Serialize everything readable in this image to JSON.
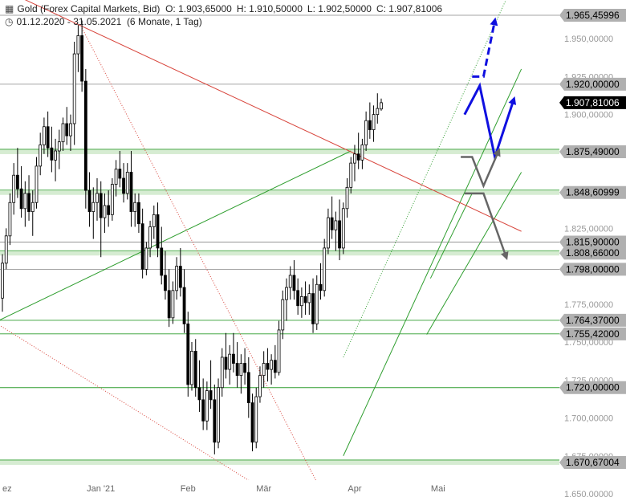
{
  "header": {
    "instrument": "Gold (Forex Capital Markets, Bid)",
    "open": "O: 1.903,65000",
    "high": "H: 1.910,50000",
    "low": "L: 1.902,50000",
    "close": "C: 1.907,81006",
    "range": "01.12.2020 - 31.05.2021",
    "period": "(6 Monate, 1 Tag)",
    "chart_icon": "candlestick-icon",
    "clock_icon": "clock-icon"
  },
  "colors": {
    "up": "#ffffff",
    "down": "#000000",
    "support": "#2f9e2f",
    "resistance": "#d8453c",
    "zone": "#d6ecd2",
    "level_line": "#888888",
    "arrow_blue": "#1010e0",
    "arrow_grey": "#666666",
    "last_price_bg": "#000000",
    "level_bg": "#b0b0b0"
  },
  "chart_data": {
    "type": "candlestick",
    "ylim": [
      1650,
      1980
    ],
    "y_ticks": [
      {
        "v": 1650,
        "label": "1.650,00000"
      },
      {
        "v": 1675,
        "label": "1.675,00000"
      },
      {
        "v": 1700,
        "label": "1.700,00000"
      },
      {
        "v": 1725,
        "label": "1.725,00000"
      },
      {
        "v": 1750,
        "label": "1.750,00000"
      },
      {
        "v": 1775,
        "label": "1.775,00000"
      },
      {
        "v": 1800,
        "label": "1.800,00000"
      },
      {
        "v": 1825,
        "label": "1.825,00000"
      },
      {
        "v": 1850,
        "label": "1.850,00000"
      },
      {
        "v": 1875,
        "label": "1.875,00000"
      },
      {
        "v": 1900,
        "label": "1.900,00000"
      },
      {
        "v": 1925,
        "label": "1.925,00000"
      },
      {
        "v": 1950,
        "label": "1.950,00000"
      }
    ],
    "x_ticks": [
      {
        "label": "ez",
        "day": 0
      },
      {
        "label": "Jan '21",
        "day": 26
      },
      {
        "label": "Feb",
        "day": 49
      },
      {
        "label": "Mär",
        "day": 69
      },
      {
        "label": "Apr",
        "day": 93
      },
      {
        "label": "Mai",
        "day": 115
      }
    ],
    "levels": [
      {
        "v": 1965.45996,
        "label": "1.965,45996",
        "style": "grey"
      },
      {
        "v": 1920.0,
        "label": "1.920,00000",
        "style": "grey"
      },
      {
        "v": 1907.81006,
        "label": "1.907,81006",
        "style": "last"
      },
      {
        "v": 1875.49,
        "label": "1.875,49000",
        "style": "zone"
      },
      {
        "v": 1848.60999,
        "label": "1.848,60999",
        "style": "zone"
      },
      {
        "v": 1815.9,
        "label": "1.815,90000",
        "style": "grey"
      },
      {
        "v": 1808.66,
        "label": "1.808,66000",
        "style": "zone"
      },
      {
        "v": 1798.0,
        "label": "1.798,00000",
        "style": "grey"
      },
      {
        "v": 1764.37,
        "label": "1.764,37000",
        "style": "green"
      },
      {
        "v": 1755.42,
        "label": "1.755,42000",
        "style": "green"
      },
      {
        "v": 1720.0,
        "label": "1.720,00000",
        "style": "green"
      },
      {
        "v": 1670.67004,
        "label": "1.670,67004",
        "style": "zone"
      }
    ],
    "candles": [
      [
        1779,
        1808,
        1770,
        1802
      ],
      [
        1802,
        1825,
        1798,
        1820
      ],
      [
        1820,
        1848,
        1814,
        1842
      ],
      [
        1842,
        1868,
        1834,
        1860
      ],
      [
        1860,
        1878,
        1845,
        1851
      ],
      [
        1851,
        1866,
        1832,
        1838
      ],
      [
        1838,
        1856,
        1826,
        1848
      ],
      [
        1848,
        1860,
        1830,
        1836
      ],
      [
        1836,
        1850,
        1820,
        1842
      ],
      [
        1842,
        1872,
        1838,
        1866
      ],
      [
        1866,
        1888,
        1860,
        1880
      ],
      [
        1880,
        1898,
        1874,
        1892
      ],
      [
        1892,
        1902,
        1872,
        1878
      ],
      [
        1878,
        1892,
        1862,
        1870
      ],
      [
        1870,
        1884,
        1856,
        1876
      ],
      [
        1876,
        1890,
        1864,
        1882
      ],
      [
        1882,
        1898,
        1876,
        1894
      ],
      [
        1894,
        1905,
        1880,
        1886
      ],
      [
        1886,
        1900,
        1876,
        1894
      ],
      [
        1894,
        1948,
        1880,
        1940
      ],
      [
        1940,
        1959,
        1928,
        1952
      ],
      [
        1952,
        1962,
        1915,
        1922
      ],
      [
        1922,
        1930,
        1838,
        1850
      ],
      [
        1850,
        1862,
        1826,
        1836
      ],
      [
        1836,
        1852,
        1818,
        1842
      ],
      [
        1842,
        1858,
        1830,
        1848
      ],
      [
        1848,
        1856,
        1806,
        1832
      ],
      [
        1832,
        1848,
        1822,
        1840
      ],
      [
        1840,
        1850,
        1826,
        1834
      ],
      [
        1834,
        1858,
        1830,
        1854
      ],
      [
        1854,
        1870,
        1846,
        1864
      ],
      [
        1864,
        1876,
        1852,
        1858
      ],
      [
        1858,
        1868,
        1842,
        1848
      ],
      [
        1848,
        1868,
        1844,
        1862
      ],
      [
        1862,
        1876,
        1826,
        1836
      ],
      [
        1836,
        1848,
        1826,
        1842
      ],
      [
        1842,
        1848,
        1822,
        1828
      ],
      [
        1828,
        1838,
        1792,
        1798
      ],
      [
        1798,
        1816,
        1794,
        1812
      ],
      [
        1812,
        1830,
        1806,
        1826
      ],
      [
        1826,
        1840,
        1818,
        1834
      ],
      [
        1834,
        1842,
        1806,
        1812
      ],
      [
        1812,
        1826,
        1788,
        1794
      ],
      [
        1794,
        1810,
        1778,
        1784
      ],
      [
        1784,
        1798,
        1760,
        1766
      ],
      [
        1766,
        1790,
        1762,
        1784
      ],
      [
        1784,
        1806,
        1778,
        1800
      ],
      [
        1800,
        1812,
        1780,
        1786
      ],
      [
        1786,
        1798,
        1756,
        1762
      ],
      [
        1762,
        1770,
        1714,
        1722
      ],
      [
        1722,
        1750,
        1718,
        1744
      ],
      [
        1744,
        1752,
        1714,
        1720
      ],
      [
        1720,
        1738,
        1704,
        1712
      ],
      [
        1712,
        1726,
        1692,
        1698
      ],
      [
        1698,
        1724,
        1692,
        1718
      ],
      [
        1718,
        1738,
        1706,
        1712
      ],
      [
        1712,
        1722,
        1676,
        1684
      ],
      [
        1684,
        1726,
        1680,
        1720
      ],
      [
        1720,
        1746,
        1714,
        1740
      ],
      [
        1740,
        1756,
        1726,
        1732
      ],
      [
        1732,
        1748,
        1722,
        1742
      ],
      [
        1742,
        1756,
        1730,
        1736
      ],
      [
        1736,
        1750,
        1720,
        1728
      ],
      [
        1728,
        1742,
        1716,
        1736
      ],
      [
        1736,
        1746,
        1722,
        1730
      ],
      [
        1730,
        1740,
        1700,
        1710
      ],
      [
        1710,
        1716,
        1678,
        1684
      ],
      [
        1684,
        1720,
        1680,
        1714
      ],
      [
        1714,
        1734,
        1710,
        1728
      ],
      [
        1728,
        1744,
        1720,
        1736
      ],
      [
        1736,
        1746,
        1724,
        1732
      ],
      [
        1732,
        1742,
        1722,
        1738
      ],
      [
        1738,
        1748,
        1726,
        1730
      ],
      [
        1730,
        1764,
        1728,
        1758
      ],
      [
        1758,
        1784,
        1752,
        1778
      ],
      [
        1778,
        1792,
        1764,
        1786
      ],
      [
        1786,
        1800,
        1778,
        1794
      ],
      [
        1794,
        1804,
        1778,
        1784
      ],
      [
        1784,
        1792,
        1768,
        1774
      ],
      [
        1774,
        1786,
        1766,
        1780
      ],
      [
        1780,
        1790,
        1768,
        1776
      ],
      [
        1776,
        1788,
        1768,
        1782
      ],
      [
        1782,
        1792,
        1756,
        1762
      ],
      [
        1762,
        1794,
        1758,
        1788
      ],
      [
        1788,
        1802,
        1778,
        1784
      ],
      [
        1784,
        1818,
        1780,
        1812
      ],
      [
        1812,
        1838,
        1808,
        1832
      ],
      [
        1832,
        1846,
        1818,
        1824
      ],
      [
        1824,
        1836,
        1810,
        1830
      ],
      [
        1830,
        1844,
        1804,
        1812
      ],
      [
        1812,
        1842,
        1808,
        1838
      ],
      [
        1838,
        1858,
        1832,
        1852
      ],
      [
        1852,
        1872,
        1848,
        1868
      ],
      [
        1868,
        1880,
        1856,
        1874
      ],
      [
        1874,
        1888,
        1864,
        1870
      ],
      [
        1870,
        1884,
        1864,
        1880
      ],
      [
        1880,
        1902,
        1876,
        1896
      ],
      [
        1896,
        1908,
        1884,
        1890
      ],
      [
        1890,
        1906,
        1882,
        1900
      ],
      [
        1900,
        1914,
        1894,
        1904
      ],
      [
        1903.65,
        1910.5,
        1902.5,
        1907.81006
      ]
    ],
    "trendlines": [
      {
        "p1": [
          -2,
          1763
        ],
        "p2": [
          92,
          1876
        ],
        "style": "green",
        "extend": false
      },
      {
        "p1": [
          90,
          1675
        ],
        "p2": [
          137,
          1930
        ],
        "style": "green",
        "extend": true
      },
      {
        "p1": [
          112,
          1755
        ],
        "p2": [
          137,
          1862
        ],
        "style": "green",
        "extend": true
      },
      {
        "p1": [
          113,
          1792
        ],
        "p2": [
          124,
          1848
        ],
        "style": "green",
        "extend": false
      },
      {
        "p1": [
          -2,
          1985
        ],
        "p2": [
          137,
          1823
        ],
        "style": "red",
        "extend": false
      },
      {
        "p1": [
          21,
          1957
        ],
        "p2": [
          85,
          1648
        ],
        "style": "reddot",
        "extend": false
      },
      {
        "p1": [
          -2,
          1763
        ],
        "p2": [
          72,
          1648
        ],
        "style": "reddot",
        "extend": false
      },
      {
        "p1": [
          90,
          1740
        ],
        "p2": [
          137,
          1998
        ],
        "style": "greendot",
        "extend": false
      }
    ],
    "projections": [
      {
        "color": "blue",
        "dashed": false,
        "pts": [
          [
            122,
            1900
          ],
          [
            126,
            1919
          ],
          [
            130,
            1872
          ],
          [
            135,
            1910
          ]
        ]
      },
      {
        "color": "blue",
        "dashed": true,
        "pts": [
          [
            124,
            1925
          ],
          [
            127,
            1925
          ],
          [
            130,
            1962
          ]
        ]
      },
      {
        "color": "grey",
        "dashed": false,
        "pts": [
          [
            121,
            1872
          ],
          [
            124,
            1872
          ],
          [
            127,
            1853
          ],
          [
            131,
            1876
          ]
        ]
      },
      {
        "color": "grey",
        "dashed": false,
        "pts": [
          [
            122,
            1848
          ],
          [
            127,
            1848
          ],
          [
            133,
            1806
          ]
        ]
      }
    ]
  }
}
